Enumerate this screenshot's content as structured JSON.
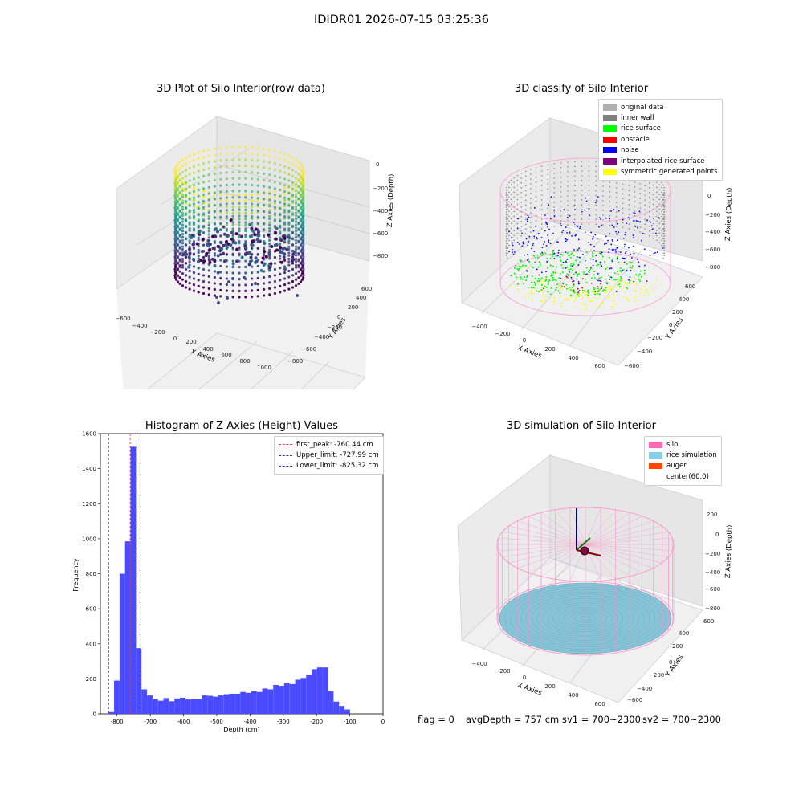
{
  "figure_title": "IDIDR01 2026-07-15 03:25:36",
  "status": {
    "flag": "flag = 0",
    "avg_depth": "avgDepth = 757 cm",
    "sv1": "sv1 = 700~2300",
    "sv2": "sv2 = 700~2300"
  },
  "chart_data": [
    {
      "type": "scatter",
      "title": "3D Plot of Silo Interior(row data)",
      "xlabel": "X Axies",
      "ylabel": "Y Axies",
      "zlabel": "Z Axies (Depth)",
      "x_ticks": [
        "−600",
        "−400",
        "−200",
        "0",
        "200",
        "400",
        "600",
        "800",
        "1000"
      ],
      "y_ticks": [
        "−800",
        "−600",
        "−400",
        "−200",
        "0",
        "200",
        "400",
        "600"
      ],
      "z_ticks": [
        "0",
        "−200",
        "−400",
        "−600",
        "−800"
      ],
      "colormap": "viridis"
    },
    {
      "type": "scatter",
      "title": "3D classify of Silo Interior",
      "xlabel": "X Axies",
      "ylabel": "Y Axies",
      "zlabel": "Z Axies (Depth)",
      "x_ticks": [
        "−400",
        "−200",
        "0",
        "200",
        "400",
        "600"
      ],
      "y_ticks": [
        "−600",
        "−400",
        "−200",
        "0",
        "200",
        "400",
        "600"
      ],
      "z_ticks": [
        "200",
        "0",
        "−200",
        "−400",
        "−600",
        "−800"
      ],
      "legend": [
        {
          "label": "original data",
          "color": "#b0b0b0"
        },
        {
          "label": "inner wall",
          "color": "#808080"
        },
        {
          "label": "rice surface",
          "color": "#00ff00"
        },
        {
          "label": "obstacle",
          "color": "#ff0000"
        },
        {
          "label": "noise",
          "color": "#0000ff"
        },
        {
          "label": "interpolated rice surface",
          "color": "#800080"
        },
        {
          "label": "symmetric generated points",
          "color": "#ffff00"
        }
      ],
      "legend_position": "top-right"
    },
    {
      "type": "bar",
      "title": "Histogram of Z-Axies (Height) Values",
      "xlabel": "Depth (cm)",
      "ylabel": "Frequency",
      "xlim": [
        -850,
        0
      ],
      "ylim": [
        0,
        1600
      ],
      "x_ticks": [
        -800,
        -700,
        -600,
        -500,
        -400,
        -300,
        -200,
        -100,
        0
      ],
      "y_ticks": [
        0,
        200,
        400,
        600,
        800,
        1000,
        1200,
        1400,
        1600
      ],
      "bin_width": 16.5,
      "bin_start": -825.32,
      "values": [
        10,
        190,
        800,
        985,
        1525,
        375,
        140,
        105,
        85,
        75,
        90,
        72,
        88,
        92,
        82,
        85,
        85,
        105,
        103,
        98,
        105,
        112,
        115,
        115,
        125,
        120,
        130,
        125,
        145,
        140,
        165,
        160,
        175,
        170,
        195,
        205,
        225,
        255,
        265,
        265,
        130,
        70,
        45,
        25
      ],
      "bar_color": "#4a4aff",
      "lines": [
        {
          "label": "first_peak: -760.44 cm",
          "x": -760.44,
          "color": "#e83030"
        },
        {
          "label": "Upper_limit: -727.99 cm",
          "x": -727.99,
          "color": "#2020c8"
        },
        {
          "label": "Lower_limit: -825.32 cm",
          "x": -825.32,
          "color": "#2020c8"
        }
      ],
      "legend_position": "top-right"
    },
    {
      "type": "scatter",
      "title": "3D simulation of Silo Interior",
      "xlabel": "X Axies",
      "ylabel": "Y Axies",
      "zlabel": "Z Axies (Depth)",
      "x_ticks": [
        "−400",
        "−200",
        "0",
        "200",
        "400",
        "600"
      ],
      "y_ticks": [
        "−600",
        "−400",
        "−200",
        "0",
        "200",
        "400",
        "600"
      ],
      "z_ticks": [
        "200",
        "0",
        "−200",
        "−400",
        "−600",
        "−800"
      ],
      "legend": [
        {
          "label": "silo",
          "color": "#ff69b4"
        },
        {
          "label": "rice simulation",
          "color": "#87ceeb"
        },
        {
          "label": "auger",
          "color": "#ff4500"
        },
        {
          "label": "center(60,0)",
          "color": "#ffffff"
        }
      ],
      "legend_position": "top-right"
    }
  ]
}
